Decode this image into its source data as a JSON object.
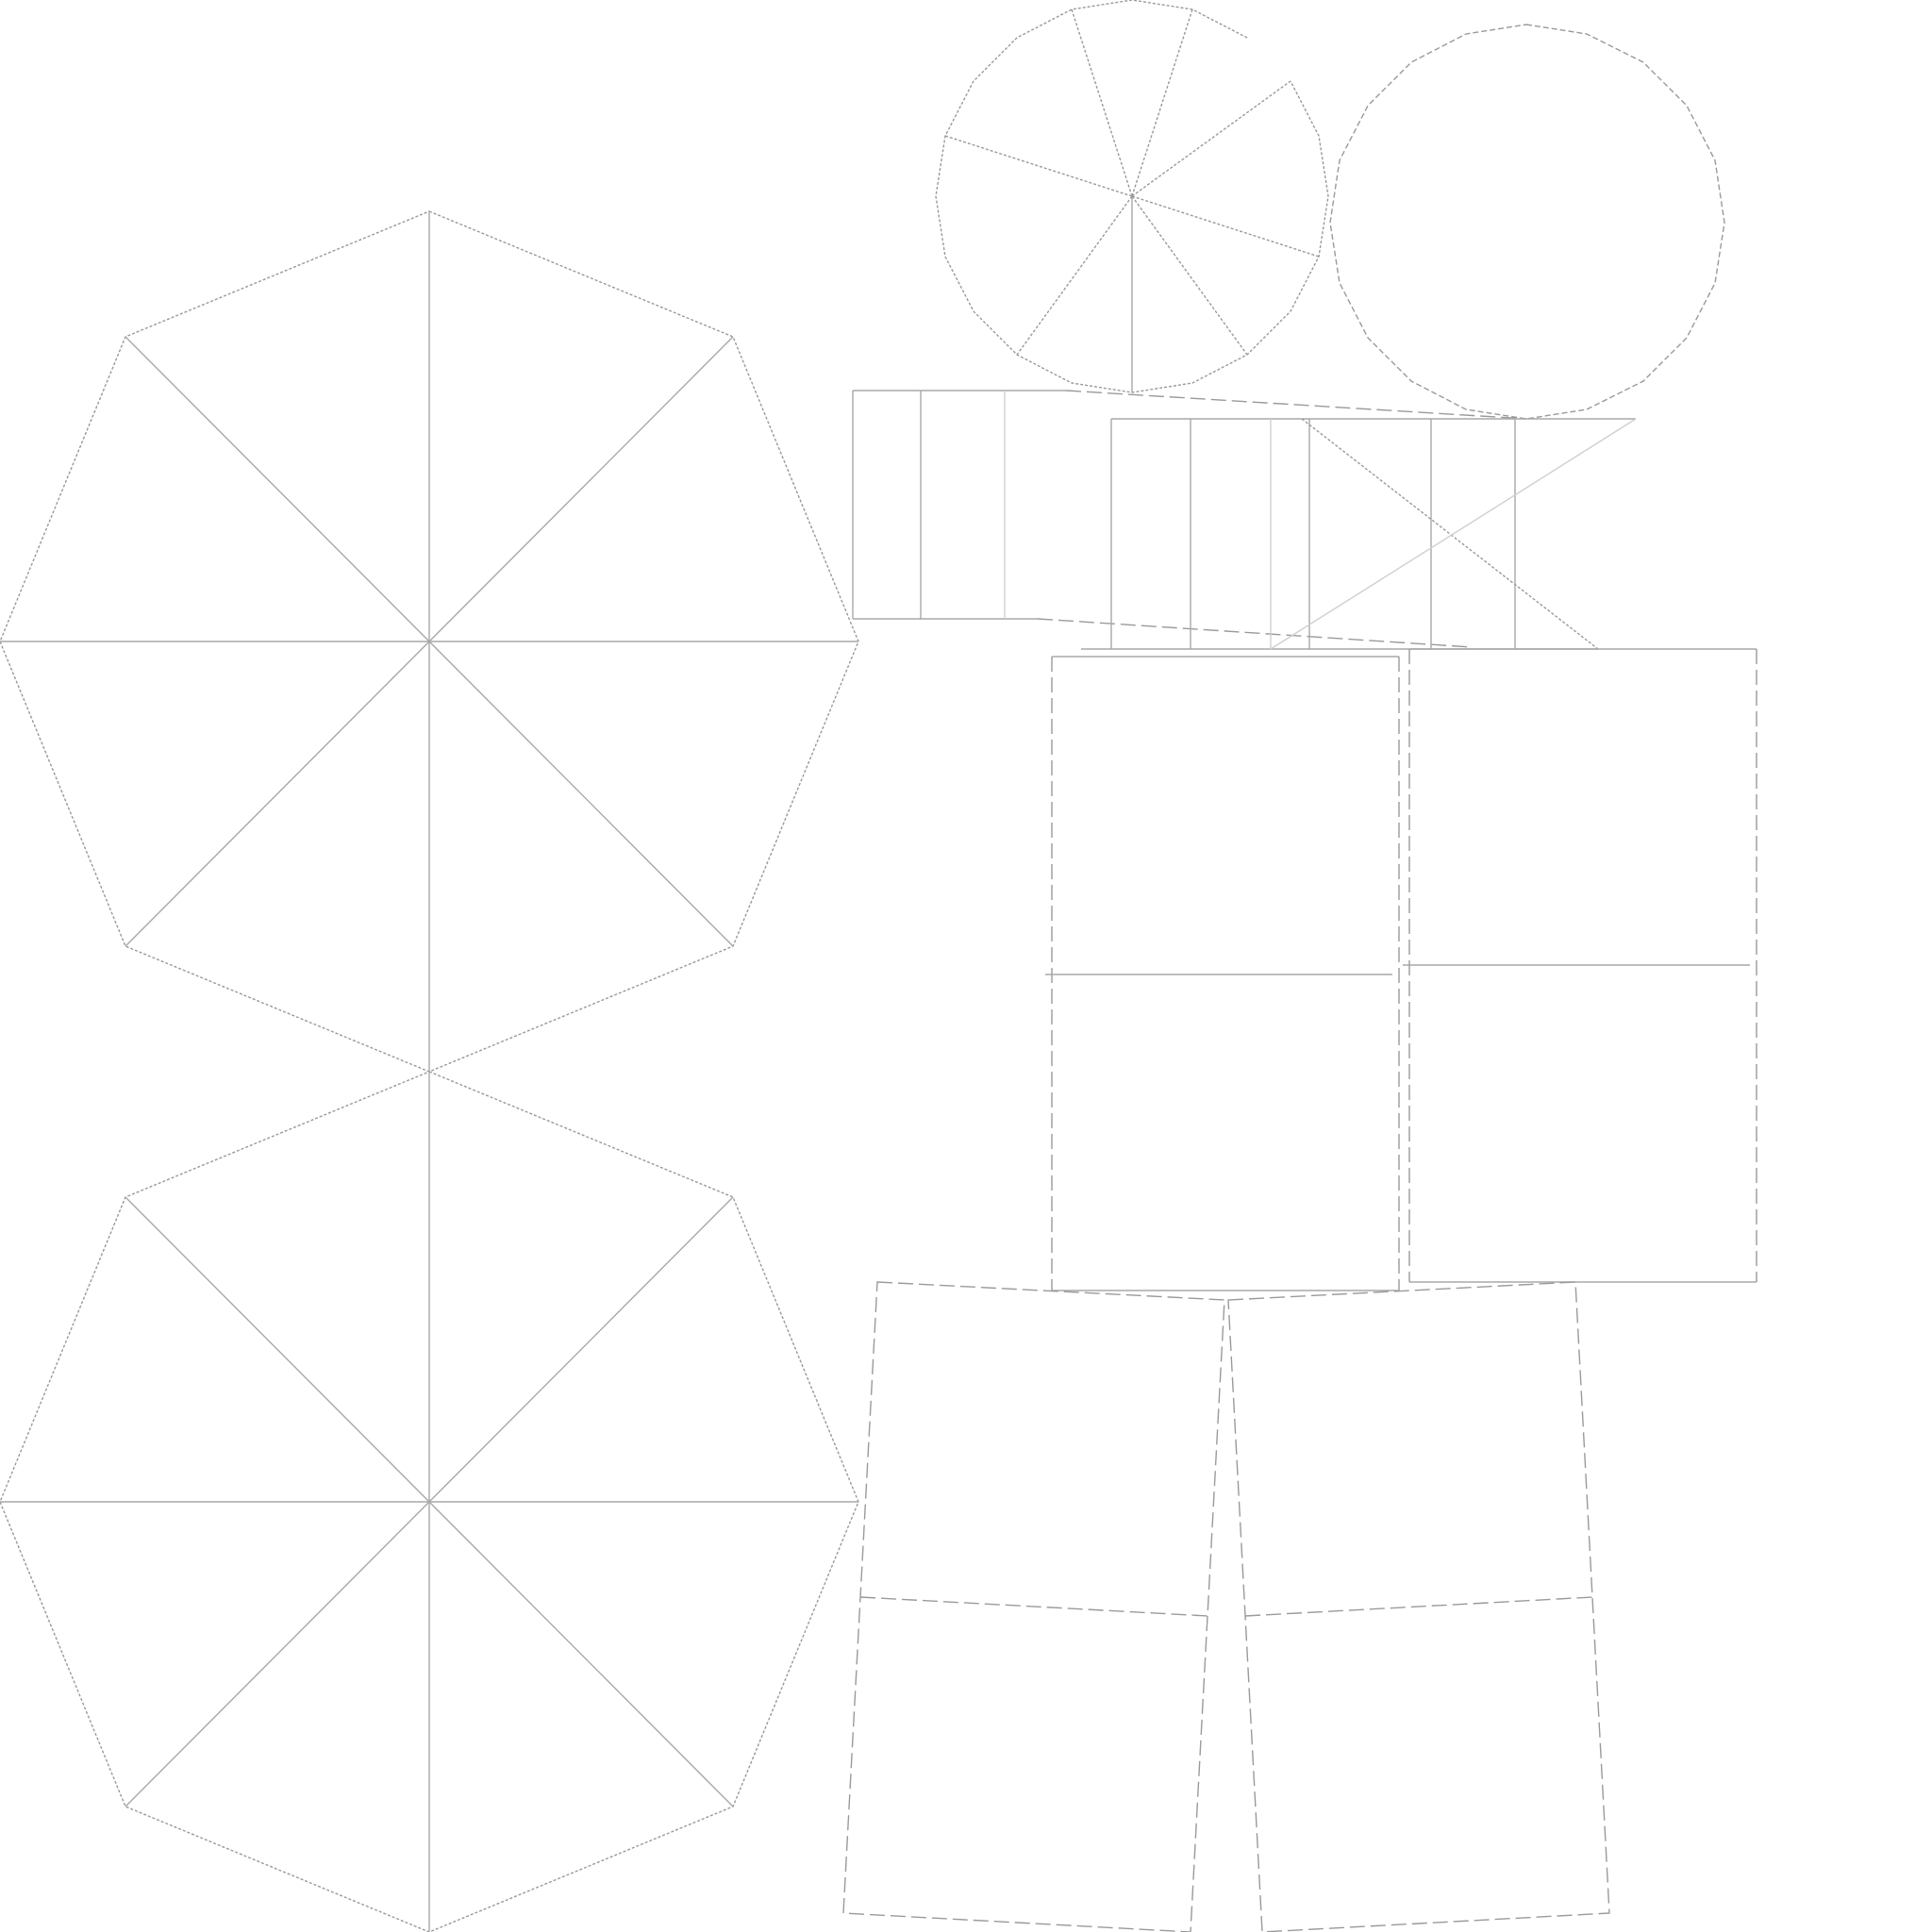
{
  "diagram": {
    "kind": "uv-layout-wireframe",
    "text_labels": [],
    "colors": {
      "background": "#ffffff",
      "stroke": "#9a9a9a",
      "stroke_light": "#cfcfcf"
    },
    "parts": [
      {
        "id": "octagon-top",
        "shape": "octagon",
        "divisions": 8
      },
      {
        "id": "octagon-bottom",
        "shape": "octagon",
        "divisions": 8
      },
      {
        "id": "circle-cap-divided",
        "shape": "16-gon",
        "divisions": 8
      },
      {
        "id": "circle-cap-plain",
        "shape": "16-gon",
        "divisions": 0
      },
      {
        "id": "strip-upper-left",
        "shape": "strip",
        "divisions": 3
      },
      {
        "id": "strip-upper-right",
        "shape": "strip",
        "divisions": 6
      },
      {
        "id": "panel-left",
        "shape": "rectangle",
        "divisions": 2
      },
      {
        "id": "panel-right",
        "shape": "rectangle",
        "divisions": 2
      },
      {
        "id": "trapezoid-left",
        "shape": "trapezoid",
        "divisions": 2
      },
      {
        "id": "trapezoid-right",
        "shape": "trapezoid",
        "divisions": 2
      }
    ]
  }
}
